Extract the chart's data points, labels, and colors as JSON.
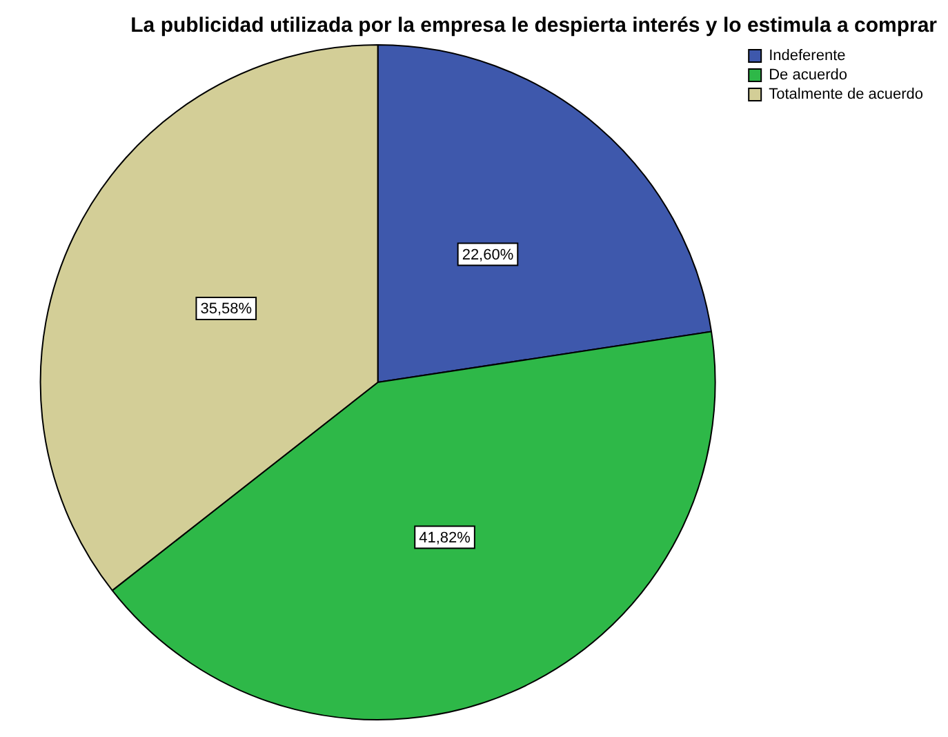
{
  "chart_data": {
    "type": "pie",
    "title": "La publicidad utilizada por la empresa le despierta interés y lo estimula a comprar",
    "categories": [
      "Indeferente",
      "De acuerdo",
      "Totalmente de acuerdo"
    ],
    "values": [
      22.6,
      41.82,
      35.58
    ],
    "colors": [
      "#3e58ac",
      "#2eb848",
      "#d3ce97"
    ],
    "value_labels": [
      "22,60%",
      "41,82%",
      "35,58%"
    ],
    "legend": "top right"
  }
}
